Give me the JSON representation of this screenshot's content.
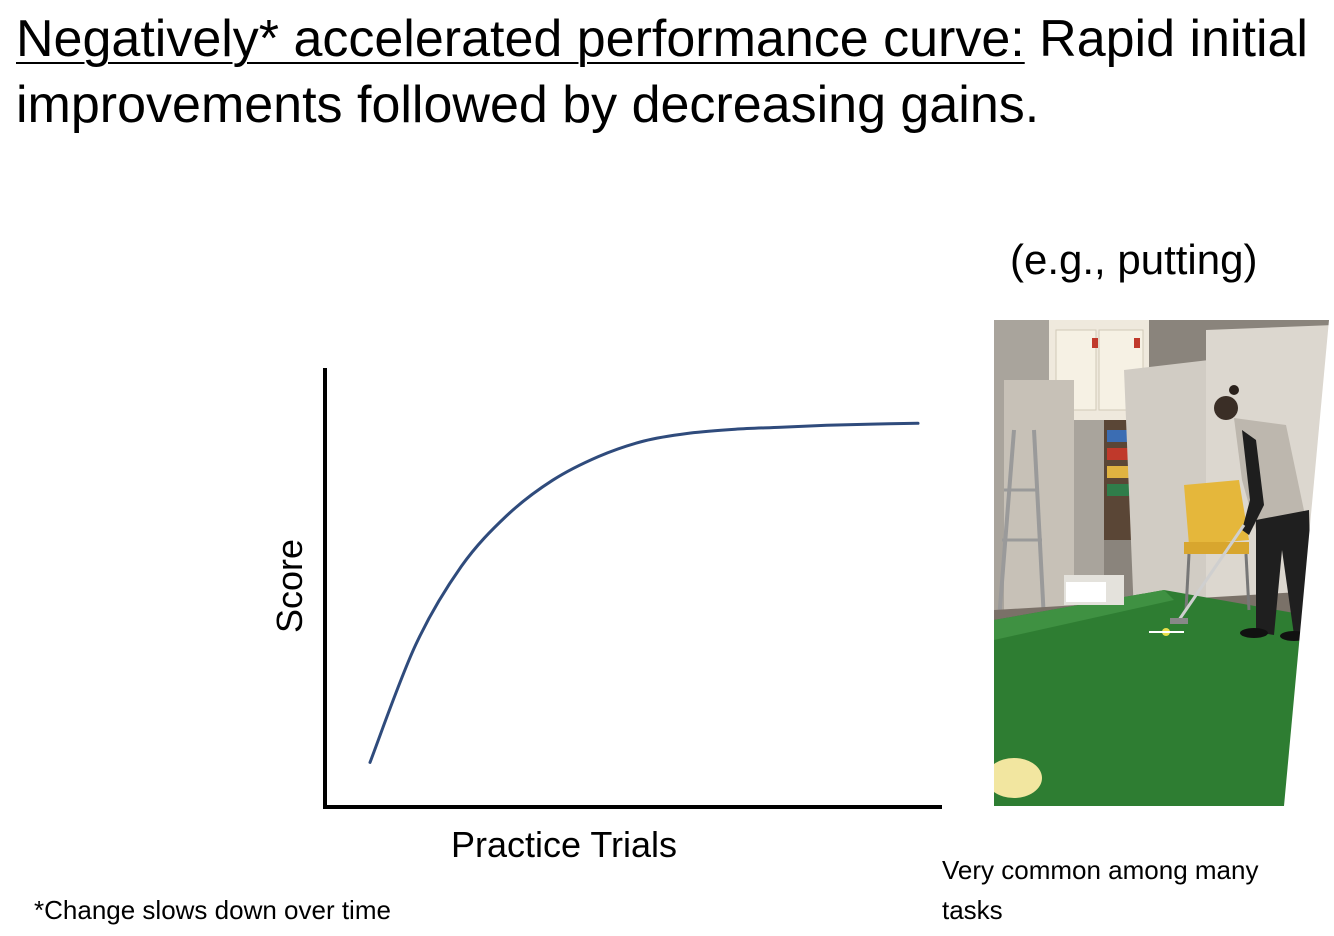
{
  "slide": {
    "title_underlined": "Negatively* accelerated performance curve:",
    "title_rest": " Rapid initial improvements followed by decreasing gains.",
    "photo_caption": "(e.g., putting)",
    "footnote": "*Change slows down over time",
    "side_note": "Very common among many tasks"
  },
  "chart_data": {
    "type": "line",
    "title": "",
    "xlabel": "Practice Trials",
    "ylabel": "Score",
    "grid": false,
    "legend": "none",
    "x": [
      0,
      1,
      2,
      3,
      4,
      5,
      6,
      7,
      8,
      9,
      10,
      11,
      12
    ],
    "series": [
      {
        "values": [
          5,
          35,
          55,
          68,
          77,
          83,
          87,
          89,
          90,
          90.5,
          91,
          91.3,
          91.5
        ],
        "color": "#2f4b7c"
      }
    ],
    "xlim": [
      0,
      12
    ],
    "ylim": [
      0,
      100
    ]
  },
  "photo": {
    "icon": "golf-putting-photo-icon",
    "colors": {
      "green": "#2e7d32",
      "wall": "#b9b4ad",
      "floor": "#7d756c",
      "chair": "#e5b73b",
      "ball_spot": "#f2e6a0"
    }
  }
}
